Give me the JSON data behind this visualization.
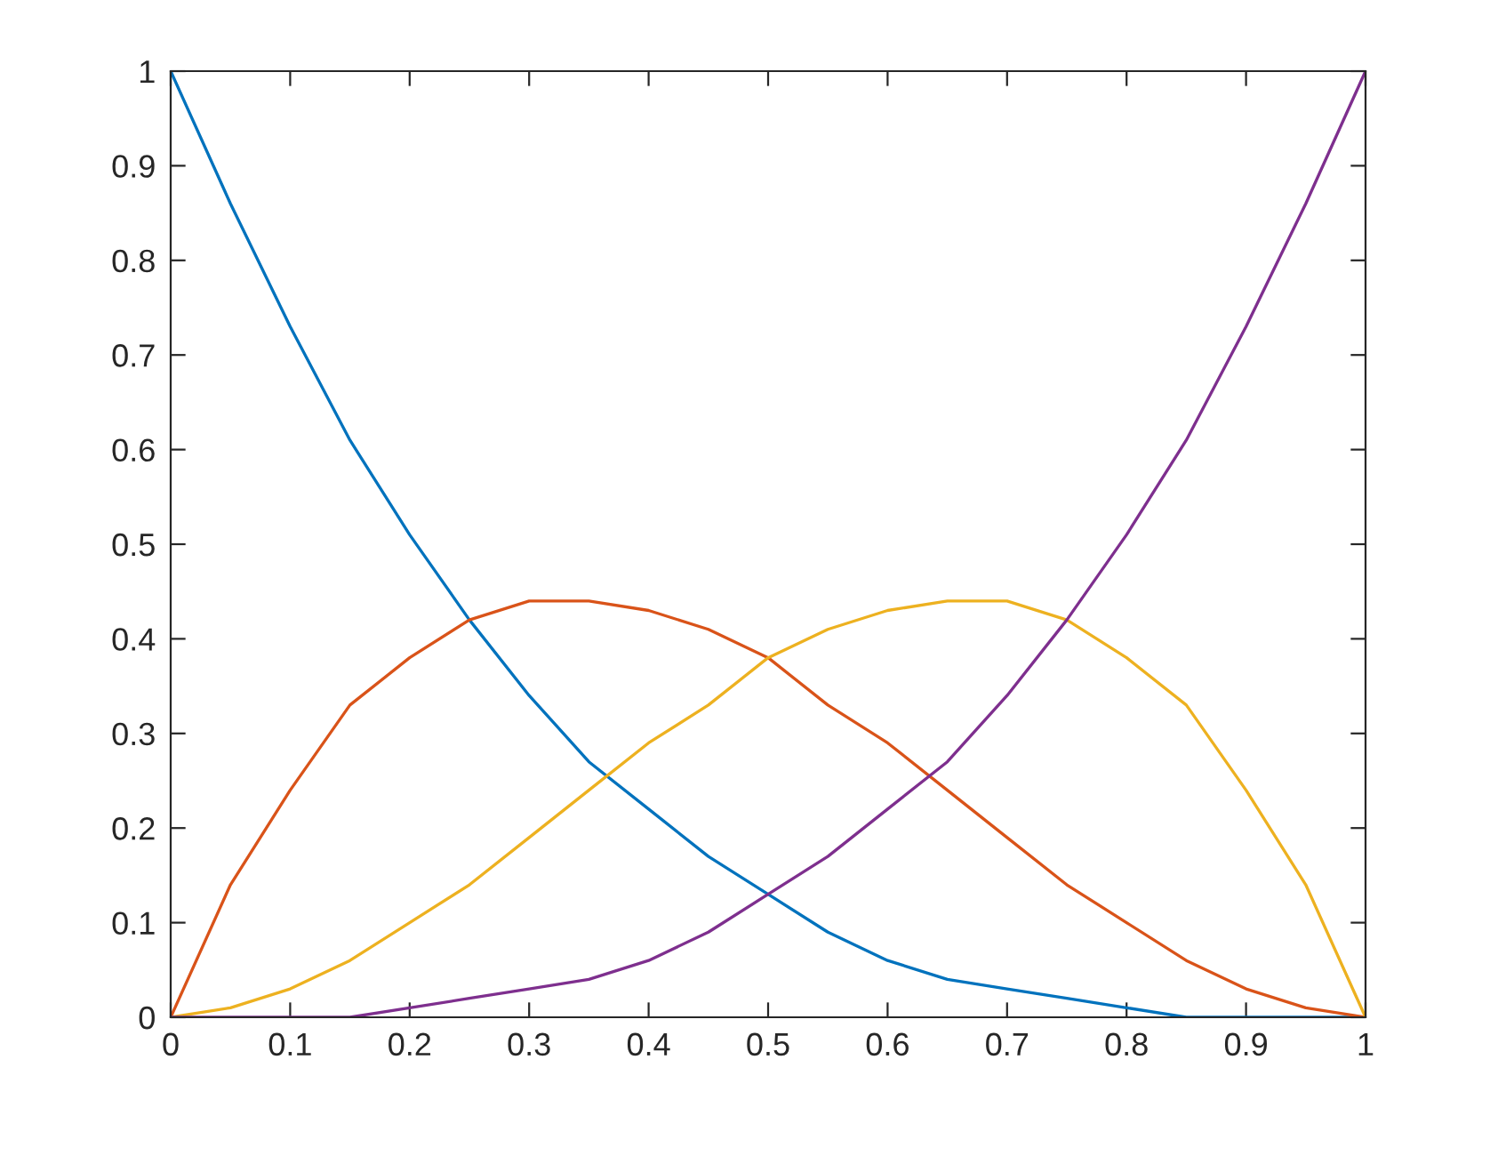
{
  "chart_data": {
    "type": "line",
    "x": [
      0,
      0.05,
      0.1,
      0.15,
      0.2,
      0.25,
      0.3,
      0.35,
      0.4,
      0.45,
      0.5,
      0.55,
      0.6,
      0.65,
      0.7,
      0.75,
      0.8,
      0.85,
      0.9,
      0.95,
      1
    ],
    "series": [
      {
        "color": "#0072bd",
        "values": [
          1,
          0.86,
          0.73,
          0.61,
          0.51,
          0.42,
          0.34,
          0.27,
          0.22,
          0.17,
          0.13,
          0.09,
          0.06,
          0.04,
          0.03,
          0.02,
          0.01,
          0,
          0,
          0,
          0
        ]
      },
      {
        "color": "#d95319",
        "values": [
          0,
          0.14,
          0.24,
          0.33,
          0.38,
          0.42,
          0.44,
          0.44,
          0.43,
          0.41,
          0.38,
          0.33,
          0.29,
          0.24,
          0.19,
          0.14,
          0.1,
          0.06,
          0.03,
          0.01,
          0
        ]
      },
      {
        "color": "#edb120",
        "values": [
          0,
          0.01,
          0.03,
          0.06,
          0.1,
          0.14,
          0.19,
          0.24,
          0.29,
          0.33,
          0.38,
          0.41,
          0.43,
          0.44,
          0.44,
          0.42,
          0.38,
          0.33,
          0.24,
          0.14,
          0
        ]
      },
      {
        "color": "#7e2f8e",
        "values": [
          0,
          0,
          0,
          0,
          0.01,
          0.02,
          0.03,
          0.04,
          0.06,
          0.09,
          0.13,
          0.17,
          0.22,
          0.27,
          0.34,
          0.42,
          0.51,
          0.61,
          0.73,
          0.86,
          1
        ]
      }
    ],
    "xlim": [
      0,
      1
    ],
    "ylim": [
      0,
      1
    ],
    "xticks": [
      0,
      0.1,
      0.2,
      0.3,
      0.4,
      0.5,
      0.6,
      0.7,
      0.8,
      0.9,
      1
    ],
    "yticks": [
      0,
      0.1,
      0.2,
      0.3,
      0.4,
      0.5,
      0.6,
      0.7,
      0.8,
      0.9,
      1
    ],
    "grid": false,
    "legend": false
  }
}
